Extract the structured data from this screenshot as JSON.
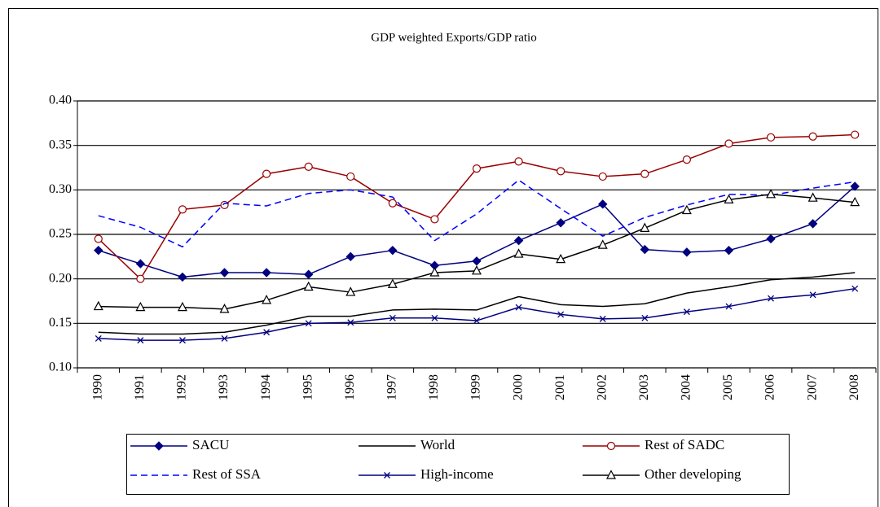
{
  "chart_data": {
    "type": "line",
    "title": "GDP weighted Exports/GDP ratio",
    "categories": [
      "1990",
      "1991",
      "1992",
      "1993",
      "1994",
      "1995",
      "1996",
      "1997",
      "1998",
      "1999",
      "2000",
      "2001",
      "2002",
      "2003",
      "2004",
      "2005",
      "2006",
      "2007",
      "2008"
    ],
    "ylim": [
      0.1,
      0.4
    ],
    "yticks": [
      {
        "value": 0.1,
        "label": "0.10"
      },
      0.15,
      {
        "value": 0.2,
        "label": "0.20"
      },
      0.25,
      {
        "value": 0.3,
        "label": "0.30"
      },
      0.35,
      {
        "value": 0.4,
        "label": "0.40"
      }
    ],
    "grid": true,
    "series": [
      {
        "name": "SACU",
        "color": "#000080",
        "marker": "diamond",
        "dashed": false,
        "values": [
          0.232,
          0.217,
          0.202,
          0.207,
          0.207,
          0.205,
          0.225,
          0.232,
          0.215,
          0.22,
          0.243,
          0.263,
          0.284,
          0.233,
          0.23,
          0.232,
          0.245,
          0.262,
          0.304
        ]
      },
      {
        "name": "World",
        "color": "#000000",
        "marker": "none",
        "dashed": false,
        "values": [
          0.14,
          0.138,
          0.138,
          0.14,
          0.148,
          0.158,
          0.158,
          0.165,
          0.166,
          0.165,
          0.18,
          0.171,
          0.169,
          0.172,
          0.184,
          0.191,
          0.199,
          0.202,
          0.207
        ]
      },
      {
        "name": "Rest of SADC",
        "color": "#990000",
        "marker": "circle",
        "dashed": false,
        "values": [
          0.245,
          0.2,
          0.278,
          0.283,
          0.318,
          0.326,
          0.315,
          0.285,
          0.267,
          0.324,
          0.332,
          0.321,
          0.315,
          0.318,
          0.334,
          0.352,
          0.359,
          0.36,
          0.362
        ]
      },
      {
        "name": "Rest of SSA",
        "color": "#0000ff",
        "marker": "none",
        "dashed": true,
        "values": [
          0.271,
          0.258,
          0.236,
          0.285,
          0.282,
          0.296,
          0.3,
          0.292,
          0.243,
          0.273,
          0.311,
          0.279,
          0.248,
          0.269,
          0.283,
          0.295,
          0.294,
          0.302,
          0.309
        ]
      },
      {
        "name": "High-income",
        "color": "#000080",
        "marker": "x",
        "dashed": false,
        "values": [
          0.133,
          0.131,
          0.131,
          0.133,
          0.14,
          0.15,
          0.151,
          0.156,
          0.156,
          0.153,
          0.168,
          0.16,
          0.155,
          0.156,
          0.163,
          0.169,
          0.178,
          0.182,
          0.189
        ]
      },
      {
        "name": "Other developing",
        "color": "#000000",
        "marker": "triangle",
        "dashed": false,
        "values": [
          0.169,
          0.168,
          0.168,
          0.166,
          0.176,
          0.191,
          0.185,
          0.194,
          0.207,
          0.209,
          0.228,
          0.222,
          0.238,
          0.257,
          0.277,
          0.289,
          0.295,
          0.291,
          0.286
        ]
      }
    ]
  }
}
